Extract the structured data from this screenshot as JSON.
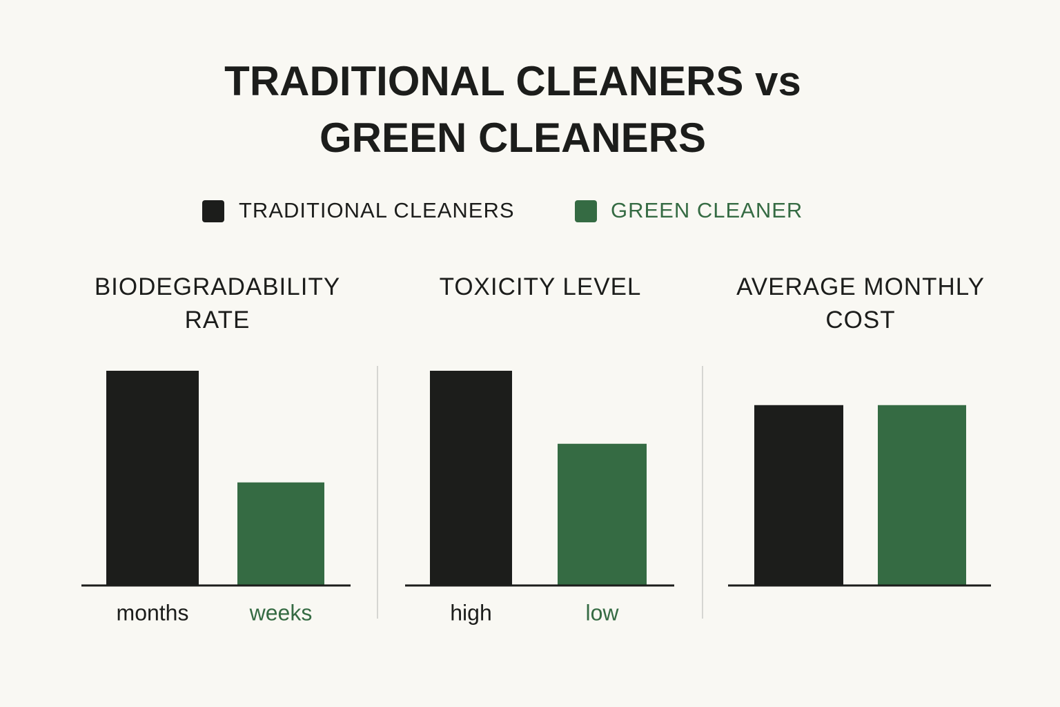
{
  "title": "TRADITIONAL CLEANERS vs GREEN CLEANERS",
  "legend": [
    {
      "name": "TRADITIONAL CLEANERS",
      "color": "#1c1d1b"
    },
    {
      "name": "GREEN CLEANER",
      "color": "#356b43"
    }
  ],
  "chart_data": [
    {
      "type": "bar",
      "title": "BIODEGRADABILITY RATE",
      "categories": [
        "months",
        "weeks"
      ],
      "values": [
        100,
        48
      ],
      "colors": [
        "#1c1d1b",
        "#356b43"
      ],
      "ylim": [
        0,
        100
      ]
    },
    {
      "type": "bar",
      "title": "TOXICITY LEVEL",
      "categories": [
        "high",
        "low"
      ],
      "values": [
        100,
        66
      ],
      "colors": [
        "#1c1d1b",
        "#356b43"
      ],
      "ylim": [
        0,
        100
      ]
    },
    {
      "type": "bar",
      "title": "AVERAGE MONTHLY COST",
      "categories": [
        null,
        null
      ],
      "values": [
        84,
        84
      ],
      "colors": [
        "#1c1d1b",
        "#356b43"
      ],
      "ylim": [
        0,
        100
      ]
    }
  ]
}
